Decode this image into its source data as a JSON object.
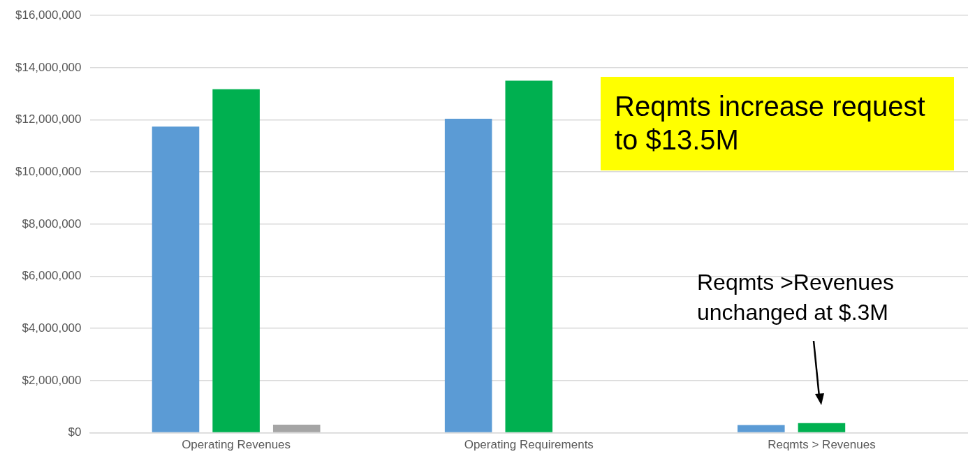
{
  "chart_data": {
    "type": "bar",
    "categories": [
      "Operating Revenues",
      "Operating Requirements",
      "Reqmts > Revenues"
    ],
    "series": [
      {
        "color": "#5b9bd5",
        "values": [
          11740000,
          12040000,
          300000
        ]
      },
      {
        "color": "#00b050",
        "values": [
          13170000,
          13500000,
          370000
        ]
      },
      {
        "color": "#a5a5a5",
        "values": [
          310000,
          null,
          null
        ]
      }
    ],
    "ylim": [
      0,
      16000000
    ],
    "yticks": [
      {
        "value": 0,
        "label": "$0"
      },
      {
        "value": 2000000,
        "label": "$2,000,000"
      },
      {
        "value": 4000000,
        "label": "$4,000,000"
      },
      {
        "value": 6000000,
        "label": "$6,000,000"
      },
      {
        "value": 8000000,
        "label": "$8,000,000"
      },
      {
        "value": 10000000,
        "label": "$10,000,000"
      },
      {
        "value": 12000000,
        "label": "$12,000,000"
      },
      {
        "value": 14000000,
        "label": "$14,000,000"
      },
      {
        "value": 16000000,
        "label": "$16,000,000"
      }
    ],
    "grid": "y",
    "legend": false,
    "annotations": [
      "Reqmts increase request to $13.5M",
      "Reqmts >Revenues unchanged at $.3M"
    ]
  }
}
